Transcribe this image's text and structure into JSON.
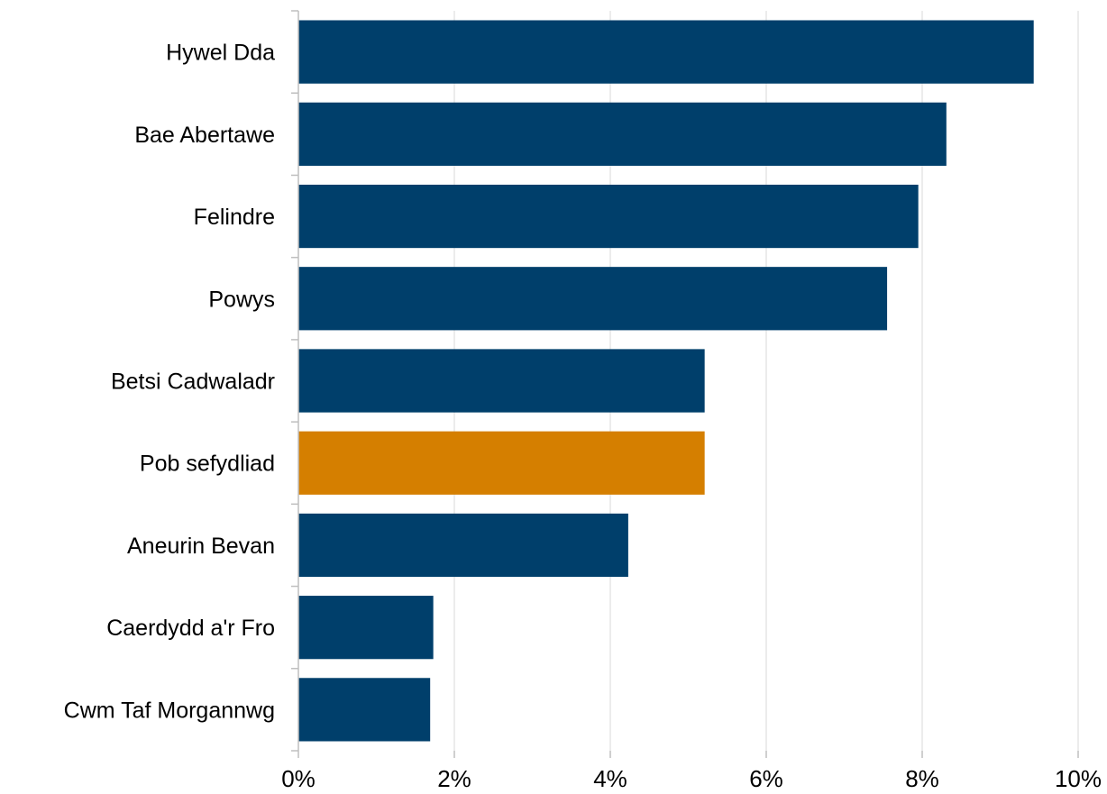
{
  "chart_data": {
    "type": "bar",
    "orientation": "horizontal",
    "categories": [
      "Hywel Dda",
      "Bae Abertawe",
      "Felindre",
      "Powys",
      "Betsi Cadwaladr",
      "Pob sefydliad",
      "Aneurin Bevan",
      "Caerdydd a'r Fro",
      "Cwm Taf Morgannwg"
    ],
    "values": [
      9.43,
      8.31,
      7.95,
      7.55,
      5.21,
      5.21,
      4.23,
      1.73,
      1.69
    ],
    "highlight_index": 5,
    "colors": {
      "bar": "#003f6b",
      "highlight": "#d57f00",
      "grid": "#d9d9d9",
      "axis": "#bfbfbf"
    },
    "xlim": [
      0,
      10
    ],
    "xticks": [
      0,
      2,
      4,
      6,
      8,
      10
    ],
    "xtick_labels": [
      "0%",
      "2%",
      "4%",
      "6%",
      "8%",
      "10%"
    ],
    "grid": "vertical",
    "title": "",
    "xlabel": "",
    "ylabel": ""
  }
}
